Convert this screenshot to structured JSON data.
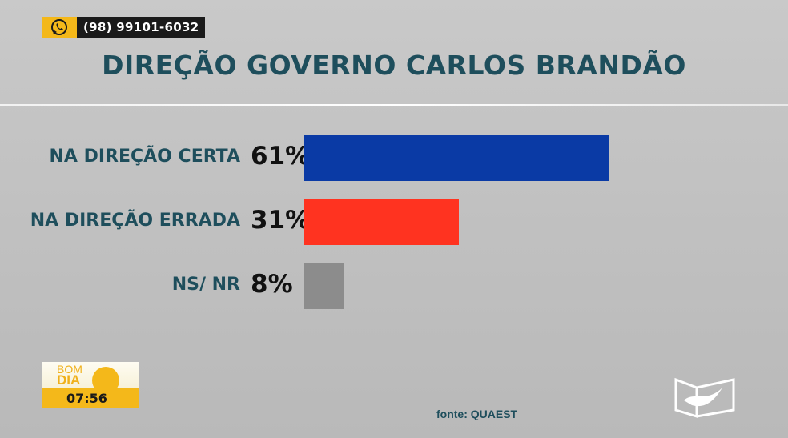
{
  "whatsapp": {
    "icon": "whatsapp-icon",
    "number": "(98) 99101-6032"
  },
  "chart_data": {
    "type": "bar",
    "orientation": "horizontal",
    "title": "DIREÇÃO GOVERNO CARLOS BRANDÃO",
    "categories": [
      "NA DIREÇÃO CERTA",
      "NA DIREÇÃO ERRADA",
      "NS/ NR"
    ],
    "values": [
      61,
      31,
      8
    ],
    "value_labels": [
      "61%",
      "31%",
      "8%"
    ],
    "colors": [
      "#0a3aa5",
      "#ff3320",
      "#8c8c8c"
    ],
    "xlim": [
      0,
      100
    ],
    "grid": false,
    "source": "fonte: QUAEST"
  },
  "show": {
    "bom": "BOM",
    "dia": "DIA",
    "time": "07:56",
    "accent": "#f4b81a"
  },
  "broadcaster_logo": "mirante-logo"
}
